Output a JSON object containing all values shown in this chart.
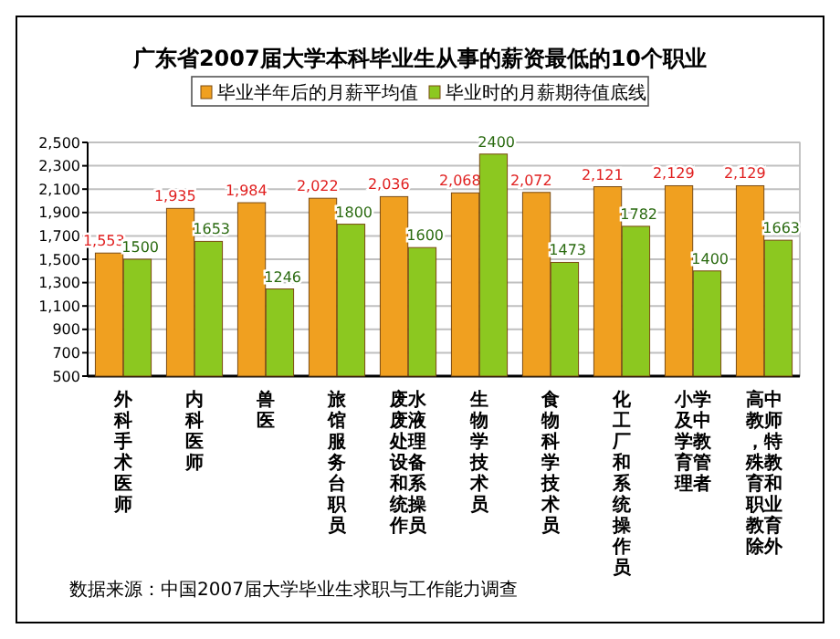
{
  "chart_data": {
    "type": "bar",
    "title": "广东省2007届大学本科毕业生从事的薪资最低的10个职业",
    "categories": [
      "外科手术医师",
      "内科医师",
      "兽医",
      "旅馆服务台职员",
      "废水废液处理设备和系统操作员",
      "生物学技术员",
      "食物科学技术员",
      "化工厂和系统操作员",
      "小学及中学教育管理者",
      "高中教师，特殊教育和职业教育除外"
    ],
    "series": [
      {
        "name": "毕业半年后的月薪平均值",
        "color": "#f0a020",
        "values": [
          1553,
          1935,
          1984,
          2022,
          2036,
          2068,
          2072,
          2121,
          2129,
          2129
        ],
        "value_labels": [
          "1,553",
          "1,935",
          "1,984",
          "2,022",
          "2,036",
          "2,068",
          "2,072",
          "2,121",
          "2,129",
          "2,129"
        ]
      },
      {
        "name": "毕业时的月薪期待值底线",
        "color": "#8cc820",
        "values": [
          1500,
          1653,
          1246,
          1800,
          1600,
          2400,
          1473,
          1782,
          1400,
          1663
        ],
        "value_labels": [
          "1500",
          "1653",
          "1246",
          "1800",
          "1600",
          "2400",
          "1473",
          "1782",
          "1400",
          "1663"
        ]
      }
    ],
    "ylim": [
      500,
      2500
    ],
    "yticks": [
      {
        "value": 500,
        "label": "500"
      },
      {
        "value": 700,
        "label": "700"
      },
      {
        "value": 900,
        "label": "900"
      },
      {
        "value": 1100,
        "label": "1,100"
      },
      {
        "value": 1300,
        "label": "1,300"
      },
      {
        "value": 1500,
        "label": "1,500"
      },
      {
        "value": 1700,
        "label": "1,700"
      },
      {
        "value": 1900,
        "label": "1,900"
      },
      {
        "value": 2100,
        "label": "2,100"
      },
      {
        "value": 2300,
        "label": "2,300"
      },
      {
        "value": 2500,
        "label": "2,500"
      }
    ],
    "grid": "y",
    "legend": "top",
    "annotations": [
      "数据来源：中国2007届大学毕业生求职与工作能力调查"
    ]
  }
}
